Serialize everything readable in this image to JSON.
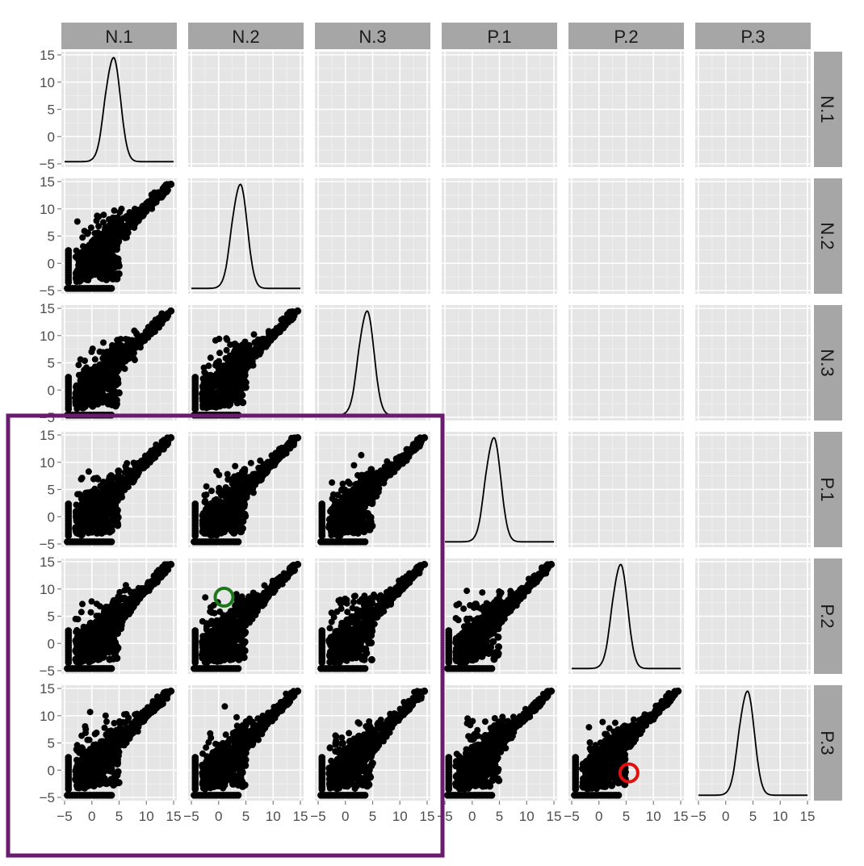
{
  "chart_data": {
    "type": "scatter",
    "variables": [
      "N.1",
      "N.2",
      "N.3",
      "P.1",
      "P.2",
      "P.3"
    ],
    "diagonal": "density",
    "lower_triangle": "scatter",
    "upper_triangle": "blank",
    "xlim": [
      -5,
      15
    ],
    "ylim": [
      -5,
      15
    ],
    "x_ticks": [
      -5,
      0,
      5,
      10,
      15
    ],
    "y_ticks": [
      -5,
      0,
      5,
      10,
      15
    ],
    "tick_labels": [
      "−5",
      "0",
      "5",
      "10",
      "15"
    ],
    "grid": true,
    "density_peak": {
      "x": 4,
      "y": 14.5
    },
    "scatter_trend": {
      "slope": 1,
      "max_point": [
        14.5,
        14.5
      ],
      "floor_value": -4.6
    },
    "annotations": [
      {
        "shape": "circle",
        "color": "#1a7a1a",
        "row": "P.2",
        "col": "N.2",
        "x": 1,
        "y": 8.5
      },
      {
        "shape": "circle",
        "color": "#e01010",
        "row": "P.3",
        "col": "P.2",
        "x": 5.5,
        "y": -0.5
      },
      {
        "shape": "rectangle",
        "color": "#6a1b6f",
        "rows": [
          "P.1",
          "P.2",
          "P.3"
        ],
        "cols": [
          "N.1",
          "N.2",
          "N.3"
        ]
      }
    ]
  },
  "colors": {
    "panel_bg": "#e5e5e5",
    "grid": "#ffffff",
    "strip_bg": "#a6a6a6",
    "points": "#000000",
    "green_circle": "#1a7a1a",
    "red_circle": "#e01010",
    "purple_box": "#6a1b6f"
  }
}
